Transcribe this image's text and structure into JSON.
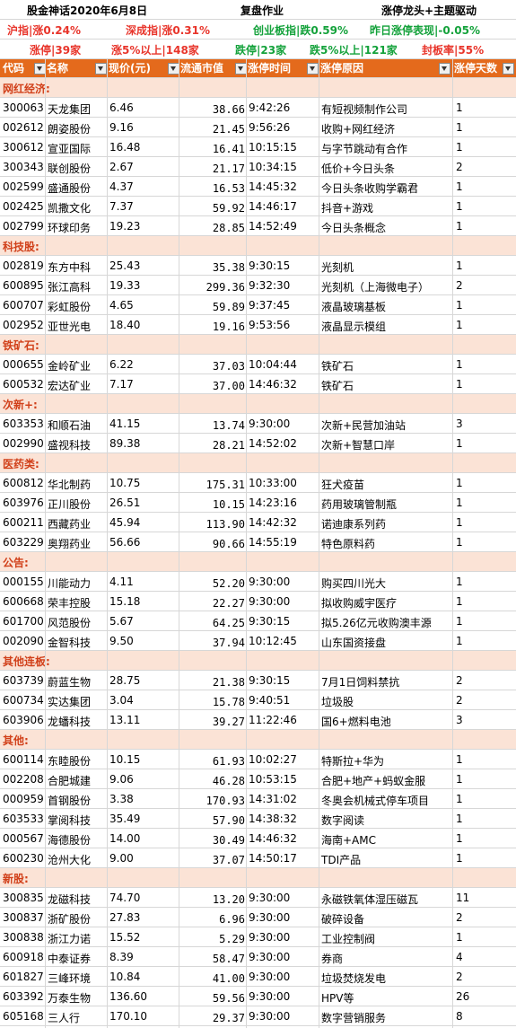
{
  "header": {
    "title": "股金神话2020年6月8日",
    "subtitle": "复盘作业",
    "theme": "涨停龙头+主题驱动"
  },
  "indices": {
    "sh": "沪指|涨0.24%",
    "sz": "深成指|涨0.31%",
    "cyb": "创业板指|跌0.59%",
    "yesterday": "昨日涨停表现|-0.05%"
  },
  "stats": {
    "limit_up": "涨停|39家",
    "up5": "涨5%以上|148家",
    "limit_down": "跌停|23家",
    "down5": "跌5%以上|121家",
    "seal_rate": "封板率|55%"
  },
  "columns": {
    "code": "代码",
    "name": "名称",
    "price": "现价(元)",
    "cap": "流通市值",
    "time": "涨停时间",
    "reason": "涨停原因",
    "days": "涨停天数"
  },
  "sections": [
    {
      "title": "网红经济:",
      "rows": [
        {
          "code": "300063",
          "name": "天龙集团",
          "price": "6.46",
          "cap": "38.66",
          "time": "9:42:26",
          "reason": "有短视频制作公司",
          "days": "1"
        },
        {
          "code": "002612",
          "name": "朗姿股份",
          "price": "9.16",
          "cap": "21.45",
          "time": "9:56:26",
          "reason": "收购+网红经济",
          "days": "1"
        },
        {
          "code": "300612",
          "name": "宣亚国际",
          "price": "16.48",
          "cap": "16.41",
          "time": "10:15:15",
          "reason": "与字节跳动有合作",
          "days": "1"
        },
        {
          "code": "300343",
          "name": "联创股份",
          "price": "2.67",
          "cap": "21.17",
          "time": "10:34:15",
          "reason": "低价+今日头条",
          "days": "2"
        },
        {
          "code": "002599",
          "name": "盛通股份",
          "price": "4.37",
          "cap": "16.53",
          "time": "14:45:32",
          "reason": "今日头条收购学霸君",
          "days": "1"
        },
        {
          "code": "002425",
          "name": "凯撒文化",
          "price": "7.37",
          "cap": "59.92",
          "time": "14:46:17",
          "reason": "抖音+游戏",
          "days": "1"
        },
        {
          "code": "002799",
          "name": "环球印务",
          "price": "19.23",
          "cap": "28.85",
          "time": "14:52:49",
          "reason": "今日头条概念",
          "days": "1"
        }
      ]
    },
    {
      "title": "科技股:",
      "rows": [
        {
          "code": "002819",
          "name": "东方中科",
          "price": "25.43",
          "cap": "35.38",
          "time": "9:30:15",
          "reason": "光刻机",
          "days": "1"
        },
        {
          "code": "600895",
          "name": "张江高科",
          "price": "19.33",
          "cap": "299.36",
          "time": "9:32:30",
          "reason": "光刻机（上海微电子）",
          "days": "2"
        },
        {
          "code": "600707",
          "name": "彩虹股份",
          "price": "4.65",
          "cap": "59.89",
          "time": "9:37:45",
          "reason": "液晶玻璃基板",
          "days": "1"
        },
        {
          "code": "002952",
          "name": "亚世光电",
          "price": "18.40",
          "cap": "19.16",
          "time": "9:53:56",
          "reason": "液晶显示模组",
          "days": "1"
        }
      ]
    },
    {
      "title": "铁矿石:",
      "rows": [
        {
          "code": "000655",
          "name": "金岭矿业",
          "price": "6.22",
          "cap": "37.03",
          "time": "10:04:44",
          "reason": "铁矿石",
          "days": "1"
        },
        {
          "code": "600532",
          "name": "宏达矿业",
          "price": "7.17",
          "cap": "37.00",
          "time": "14:46:32",
          "reason": "铁矿石",
          "days": "1"
        }
      ]
    },
    {
      "title": "次新+:",
      "rows": [
        {
          "code": "603353",
          "name": "和顺石油",
          "price": "41.15",
          "cap": "13.74",
          "time": "9:30:00",
          "reason": "次新+民营加油站",
          "days": "3"
        },
        {
          "code": "002990",
          "name": "盛视科技",
          "price": "89.38",
          "cap": "28.21",
          "time": "14:52:02",
          "reason": "次新+智慧口岸",
          "days": "1"
        }
      ]
    },
    {
      "title": "医药类:",
      "rows": [
        {
          "code": "600812",
          "name": "华北制药",
          "price": "10.75",
          "cap": "175.31",
          "time": "10:33:00",
          "reason": "狂犬疫苗",
          "days": "1"
        },
        {
          "code": "603976",
          "name": "正川股份",
          "price": "26.51",
          "cap": "10.15",
          "time": "14:23:16",
          "reason": "药用玻璃管制瓶",
          "days": "1"
        },
        {
          "code": "600211",
          "name": "西藏药业",
          "price": "45.94",
          "cap": "113.90",
          "time": "14:42:32",
          "reason": "诺迪康系列药",
          "days": "1"
        },
        {
          "code": "603229",
          "name": "奥翔药业",
          "price": "56.66",
          "cap": "90.66",
          "time": "14:55:19",
          "reason": "特色原料药",
          "days": "1"
        }
      ]
    },
    {
      "title": "公告:",
      "rows": [
        {
          "code": "000155",
          "name": "川能动力",
          "price": "4.11",
          "cap": "52.20",
          "time": "9:30:00",
          "reason": "购买四川光大",
          "days": "1"
        },
        {
          "code": "600668",
          "name": "荣丰控股",
          "price": "15.18",
          "cap": "22.27",
          "time": "9:30:00",
          "reason": "拟收购威宇医疗",
          "days": "1"
        },
        {
          "code": "601700",
          "name": "风范股份",
          "price": "5.67",
          "cap": "64.25",
          "time": "9:30:15",
          "reason": "拟5.26亿元收购澳丰源",
          "days": "1"
        },
        {
          "code": "002090",
          "name": "金智科技",
          "price": "9.50",
          "cap": "37.94",
          "time": "10:12:45",
          "reason": "山东国资接盘",
          "days": "1"
        }
      ]
    },
    {
      "title": "其他连板:",
      "rows": [
        {
          "code": "603739",
          "name": "蔚蓝生物",
          "price": "28.75",
          "cap": "21.38",
          "time": "9:30:15",
          "reason": "7月1日饲料禁抗",
          "days": "2"
        },
        {
          "code": "600734",
          "name": "实达集团",
          "price": "3.04",
          "cap": "15.78",
          "time": "9:40:51",
          "reason": "垃圾股",
          "days": "2"
        },
        {
          "code": "603906",
          "name": "龙蟠科技",
          "price": "13.11",
          "cap": "39.27",
          "time": "11:22:46",
          "reason": "国6+燃料电池",
          "days": "3"
        }
      ]
    },
    {
      "title": "其他:",
      "rows": [
        {
          "code": "600114",
          "name": "东睦股份",
          "price": "10.15",
          "cap": "61.93",
          "time": "10:02:27",
          "reason": "特斯拉+华为",
          "days": "1"
        },
        {
          "code": "002208",
          "name": "合肥城建",
          "price": "9.06",
          "cap": "46.28",
          "time": "10:53:15",
          "reason": "合肥+地产+蚂蚁金服",
          "days": "1"
        },
        {
          "code": "000959",
          "name": "首钢股份",
          "price": "3.38",
          "cap": "170.93",
          "time": "14:31:02",
          "reason": "冬奥会机械式停车项目",
          "days": "1"
        },
        {
          "code": "603533",
          "name": "掌阅科技",
          "price": "35.49",
          "cap": "57.90",
          "time": "14:38:32",
          "reason": "数字阅读",
          "days": "1"
        },
        {
          "code": "000567",
          "name": "海德股份",
          "price": "14.00",
          "cap": "30.49",
          "time": "14:46:32",
          "reason": "海南+AMC",
          "days": "1"
        },
        {
          "code": "600230",
          "name": "沧州大化",
          "price": "9.00",
          "cap": "37.07",
          "time": "14:50:17",
          "reason": "TDI产品",
          "days": "1"
        }
      ]
    },
    {
      "title": "新股:",
      "rows": [
        {
          "code": "300835",
          "name": "龙磁科技",
          "price": "74.70",
          "cap": "13.20",
          "time": "9:30:00",
          "reason": "永磁铁氧体湿压磁瓦",
          "days": "11"
        },
        {
          "code": "300837",
          "name": "浙矿股份",
          "price": "27.83",
          "cap": "6.96",
          "time": "9:30:00",
          "reason": "破碎设备",
          "days": "2"
        },
        {
          "code": "300838",
          "name": "浙江力诺",
          "price": "15.52",
          "cap": "5.29",
          "time": "9:30:00",
          "reason": "工业控制阀",
          "days": "1"
        },
        {
          "code": "600918",
          "name": "中泰证券",
          "price": "8.39",
          "cap": "58.47",
          "time": "9:30:00",
          "reason": "券商",
          "days": "4"
        },
        {
          "code": "601827",
          "name": "三峰环境",
          "price": "10.84",
          "cap": "41.00",
          "time": "9:30:00",
          "reason": "垃圾焚烧发电",
          "days": "2"
        },
        {
          "code": "603392",
          "name": "万泰生物",
          "price": "136.60",
          "cap": "59.56",
          "time": "9:30:00",
          "reason": "HPV等",
          "days": "26"
        },
        {
          "code": "605168",
          "name": "三人行",
          "price": "170.10",
          "cap": "29.37",
          "time": "9:30:00",
          "reason": "数字营销服务",
          "days": "8"
        }
      ]
    }
  ]
}
